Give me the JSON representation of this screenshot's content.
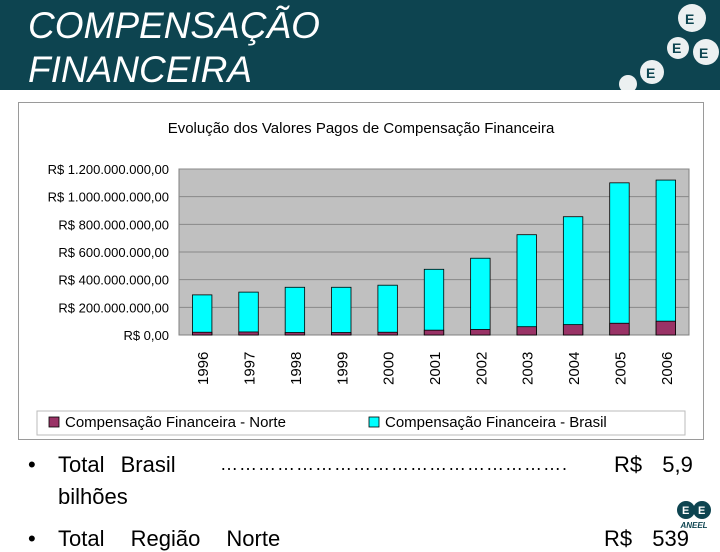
{
  "page": {
    "title": "COMPENSAÇÃO\nFINANCEIRA",
    "colors": {
      "header": "#0d4450",
      "plot_bg": "#c0c0c0",
      "brasil": "#00ffff",
      "norte": "#993366"
    }
  },
  "bullets": [
    {
      "symbol": "•",
      "label": "Total Brasil",
      "dots": "……………………………………………….",
      "value": "R$ 5,9",
      "continuation": "bilhões"
    },
    {
      "symbol": "•",
      "label": "Total Região Norte",
      "value": "R$ 539"
    }
  ],
  "brand": {
    "label": "ANEEL",
    "icon": "aneel-logo-icon"
  },
  "chart_data": {
    "type": "bar",
    "title": "Evolução dos Valores Pagos de Compensação Financeira",
    "categories": [
      "1996",
      "1997",
      "1998",
      "1999",
      "2000",
      "2001",
      "2002",
      "2003",
      "2004",
      "2005",
      "2006"
    ],
    "series": [
      {
        "name": "Compensação Financeira - Brasil",
        "color": "#00ffff",
        "values": [
          290000000,
          310000000,
          345000000,
          345000000,
          360000000,
          475000000,
          555000000,
          725000000,
          855000000,
          1100000000,
          1120000000
        ]
      },
      {
        "name": "Compensação Financeira - Norte",
        "color": "#993366",
        "values": [
          20000000,
          22000000,
          18000000,
          18000000,
          20000000,
          35000000,
          40000000,
          60000000,
          75000000,
          85000000,
          100000000
        ]
      }
    ],
    "ylim": [
      0,
      1200000000
    ],
    "yticks": [
      {
        "value": 0,
        "label": "R$ 0,00"
      },
      {
        "value": 200000000,
        "label": "R$ 200.000.000,00"
      },
      {
        "value": 400000000,
        "label": "R$ 400.000.000,00"
      },
      {
        "value": 600000000,
        "label": "R$ 600.000.000,00"
      },
      {
        "value": 800000000,
        "label": "R$ 800.000.000,00"
      },
      {
        "value": 1000000000,
        "label": "R$ 1.000.000.000,00"
      },
      {
        "value": 1200000000,
        "label": "R$ 1.200.000.000,00"
      }
    ],
    "legend": [
      "Compensação Financeira - Norte",
      "Compensação Financeira - Brasil"
    ],
    "legend_position": "bottom",
    "grid": true
  }
}
